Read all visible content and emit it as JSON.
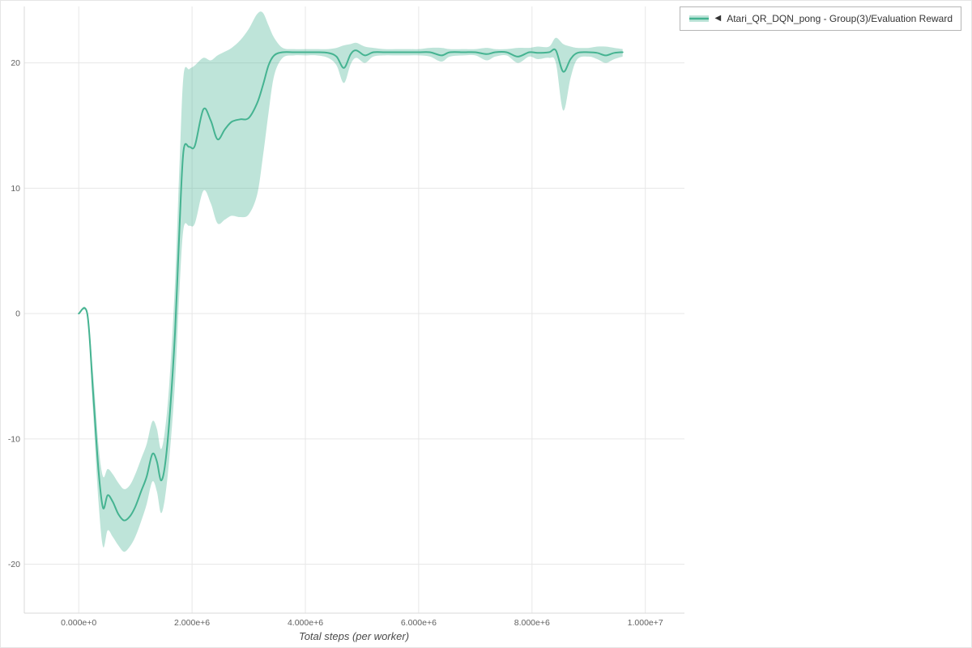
{
  "figure": {
    "background": "#ffffff",
    "border_color": "#e6e6e6"
  },
  "legend": {
    "marker_glyph": "◀",
    "label": "Atari_QR_DQN_pong - Group(3)/Evaluation Reward"
  },
  "chart_data": {
    "type": "line",
    "title": "",
    "xlabel": "Total steps (per worker)",
    "ylabel": "",
    "grid": true,
    "legend_position": "top-right",
    "xlim": [
      -960000,
      10690000
    ],
    "ylim": [
      -23.9,
      24.5
    ],
    "x_ticks": {
      "values": [
        0,
        2000000,
        4000000,
        6000000,
        8000000,
        10000000
      ],
      "labels": [
        "0.000e+0",
        "2.000e+6",
        "4.000e+6",
        "6.000e+6",
        "8.000e+6",
        "1.000e+7"
      ]
    },
    "y_ticks": {
      "values": [
        -20,
        -10,
        0,
        10,
        20
      ],
      "labels": [
        "-20",
        "-10",
        "0",
        "10",
        "20"
      ]
    },
    "grid_color": "#e7e7e7",
    "axis_color": "#d9d9d9",
    "series": [
      {
        "name": "Atari_QR_DQN_pong - Group(3)/Evaluation Reward",
        "color": "#45b391",
        "band_color": "rgba(69,179,145,0.35)",
        "x": [
          0,
          150000,
          250000,
          350000,
          430000,
          510000,
          600000,
          700000,
          800000,
          900000,
          1000000,
          1100000,
          1200000,
          1300000,
          1380000,
          1450000,
          1520000,
          1600000,
          1700000,
          1780000,
          1850000,
          1950000,
          2050000,
          2200000,
          2330000,
          2450000,
          2580000,
          2700000,
          2850000,
          3000000,
          3150000,
          3250000,
          3350000,
          3450000,
          3600000,
          3800000,
          4000000,
          4200000,
          4400000,
          4550000,
          4680000,
          4800000,
          4900000,
          5050000,
          5200000,
          5400000,
          5600000,
          5800000,
          6000000,
          6200000,
          6400000,
          6550000,
          6800000,
          7000000,
          7200000,
          7350000,
          7550000,
          7750000,
          7950000,
          8100000,
          8300000,
          8420000,
          8550000,
          8680000,
          8800000,
          9000000,
          9150000,
          9300000,
          9450000,
          9600000
        ],
        "mean": [
          0,
          0,
          -6,
          -12.5,
          -15.5,
          -14.5,
          -15,
          -16,
          -16.5,
          -16.2,
          -15.4,
          -14.2,
          -13,
          -11.2,
          -11.8,
          -13.3,
          -12.2,
          -8.5,
          -1.5,
          7,
          13,
          13.3,
          13.4,
          16.3,
          15.4,
          13.9,
          14.7,
          15.3,
          15.5,
          15.6,
          16.8,
          18.2,
          19.8,
          20.6,
          20.85,
          20.85,
          20.85,
          20.85,
          20.8,
          20.5,
          19.6,
          20.7,
          21,
          20.6,
          20.85,
          20.85,
          20.85,
          20.85,
          20.85,
          20.85,
          20.6,
          20.85,
          20.85,
          20.85,
          20.7,
          20.85,
          20.85,
          20.5,
          20.85,
          20.8,
          20.85,
          21,
          19.3,
          20.3,
          20.8,
          20.85,
          20.8,
          20.6,
          20.8,
          20.85
        ],
        "lower": [
          0,
          0,
          -7.5,
          -15,
          -18.6,
          -17.3,
          -17.8,
          -18.5,
          -19,
          -18.6,
          -17.8,
          -16.6,
          -15.2,
          -13.4,
          -14.2,
          -15.9,
          -14.8,
          -11.5,
          -5.5,
          2,
          6.8,
          7,
          7.2,
          9.8,
          8.8,
          7.2,
          7.5,
          7.8,
          7.7,
          7.9,
          9.5,
          12.5,
          16,
          19,
          20.4,
          20.6,
          20.6,
          20.6,
          20.4,
          19.8,
          18.4,
          19.9,
          20.4,
          20,
          20.5,
          20.6,
          20.6,
          20.6,
          20.6,
          20.5,
          20.1,
          20.5,
          20.6,
          20.6,
          20.2,
          20.5,
          20.6,
          20,
          20.5,
          20.3,
          20.4,
          20,
          16.2,
          18.8,
          20.3,
          20.5,
          20.3,
          20,
          20.3,
          20.5
        ],
        "upper": [
          0,
          0,
          -4.5,
          -10.5,
          -13,
          -12.4,
          -12.8,
          -13.5,
          -14,
          -13.7,
          -12.8,
          -11.6,
          -10.4,
          -8.6,
          -9.2,
          -10.8,
          -9.4,
          -5.5,
          2.5,
          12,
          19,
          19.5,
          19.8,
          20.4,
          20.2,
          20.6,
          20.9,
          21.2,
          21.8,
          22.7,
          23.9,
          24,
          23,
          22,
          21.2,
          21.1,
          21.1,
          21.1,
          21.1,
          21.2,
          21.4,
          21.5,
          21.6,
          21.3,
          21.2,
          21.1,
          21.1,
          21.1,
          21.1,
          21.2,
          21.2,
          21.1,
          21.1,
          21.1,
          21.2,
          21.1,
          21.1,
          21.2,
          21.2,
          21.3,
          21.3,
          22,
          21.5,
          21.3,
          21.2,
          21.2,
          21.3,
          21.3,
          21.2,
          21.1
        ]
      }
    ]
  }
}
